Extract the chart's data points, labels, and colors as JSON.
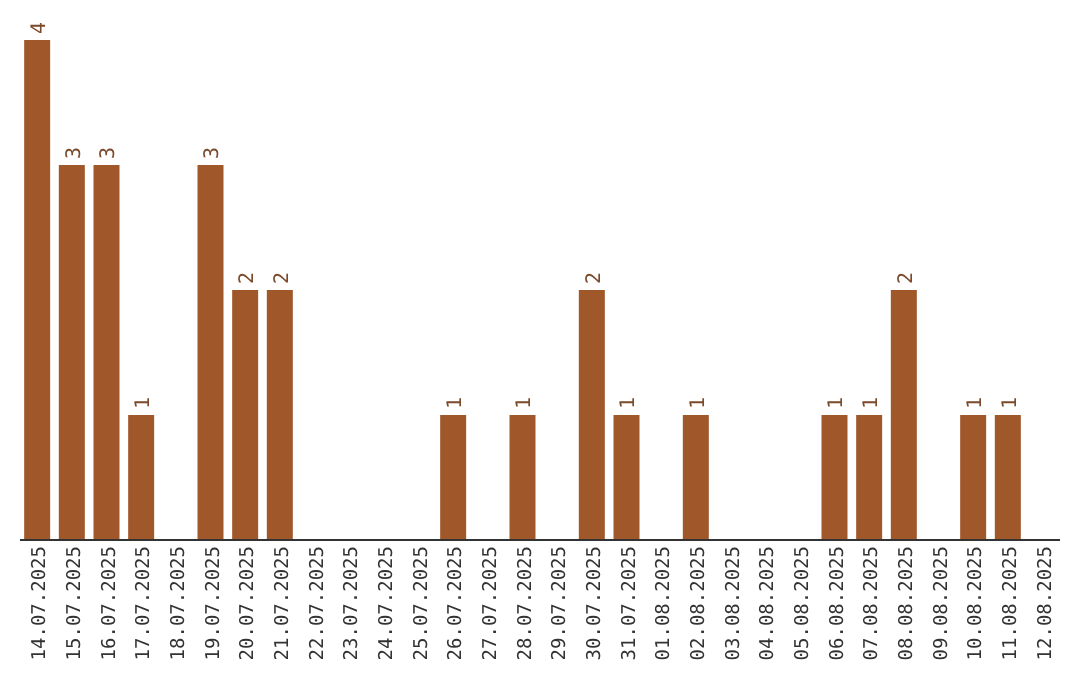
{
  "chart_data": {
    "type": "bar",
    "categories": [
      "14.07.2025",
      "15.07.2025",
      "16.07.2025",
      "17.07.2025",
      "18.07.2025",
      "19.07.2025",
      "20.07.2025",
      "21.07.2025",
      "22.07.2025",
      "23.07.2025",
      "24.07.2025",
      "25.07.2025",
      "26.07.2025",
      "27.07.2025",
      "28.07.2025",
      "29.07.2025",
      "30.07.2025",
      "31.07.2025",
      "01.08.2025",
      "02.08.2025",
      "03.08.2025",
      "04.08.2025",
      "05.08.2025",
      "06.08.2025",
      "07.08.2025",
      "08.08.2025",
      "09.08.2025",
      "10.08.2025",
      "11.08.2025",
      "12.08.2025"
    ],
    "values": [
      4,
      3,
      3,
      1,
      0,
      3,
      2,
      2,
      0,
      0,
      0,
      0,
      1,
      0,
      1,
      0,
      2,
      1,
      0,
      1,
      0,
      0,
      0,
      1,
      1,
      2,
      0,
      1,
      1,
      0
    ],
    "value_labels": [
      "4",
      "3",
      "3",
      "1",
      null,
      "3",
      "2",
      "2",
      null,
      null,
      null,
      null,
      "1",
      null,
      "1",
      null,
      "2",
      "1",
      null,
      "1",
      null,
      null,
      null,
      "1",
      "1",
      "2",
      null,
      "1",
      "1",
      null
    ],
    "color": "#a0582a",
    "grid": false,
    "legend": false
  }
}
